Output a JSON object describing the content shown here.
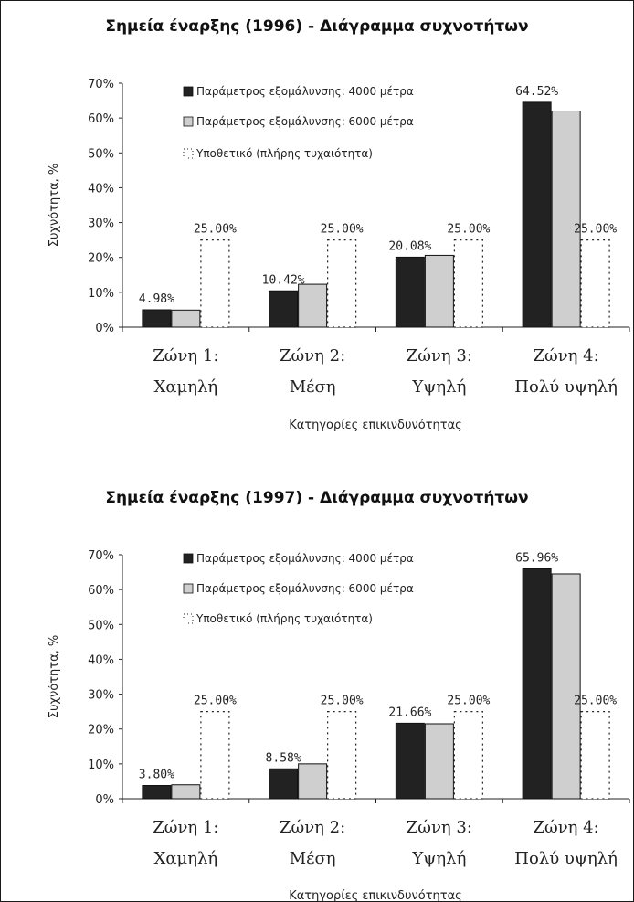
{
  "chart_data": [
    {
      "type": "bar",
      "title": "Σημεία έναρξης (1996) - Διάγραμμα συχνοτήτων",
      "xlabel": "Κατηγορίες επικινδυνότητας",
      "ylabel": "Συχνότητα, %",
      "ylim": [
        0,
        70
      ],
      "yticks": [
        "0%",
        "10%",
        "20%",
        "30%",
        "40%",
        "50%",
        "60%",
        "70%"
      ],
      "categories": [
        [
          "Ζώνη 1:",
          "Χαμηλή"
        ],
        [
          "Ζώνη 2:",
          "Μέση"
        ],
        [
          "Ζώνη 3:",
          "Υψηλή"
        ],
        [
          "Ζώνη 4:",
          "Πολύ υψηλή"
        ]
      ],
      "series": [
        {
          "name": "Παράμετρος εξομάλυνσης: 4000 μέτρα",
          "values": [
            4.98,
            10.42,
            20.08,
            64.52
          ],
          "labels": [
            "4.98%",
            "10.42%",
            "20.08%",
            "64.52%"
          ],
          "color": "#222222",
          "style": "solid"
        },
        {
          "name": "Παράμετρος εξομάλυνσης: 6000 μέτρα",
          "values": [
            4.9,
            12.3,
            20.6,
            62.0
          ],
          "labels": null,
          "color": "#cfcfcf",
          "style": "solid"
        },
        {
          "name": "Υποθετικό (πλήρης τυχαιότητα)",
          "values": [
            25,
            25,
            25,
            25
          ],
          "labels": [
            "25.00%",
            "25.00%",
            "25.00%",
            "25.00%"
          ],
          "color": "#ffffff",
          "style": "dotted"
        }
      ],
      "legend": "top-center",
      "grid": false
    },
    {
      "type": "bar",
      "title": "Σημεία έναρξης (1997) - Διάγραμμα συχνοτήτων",
      "xlabel": "Κατηγορίες επικινδυνότητας",
      "ylabel": "Συχνότητα, %",
      "ylim": [
        0,
        70
      ],
      "yticks": [
        "0%",
        "10%",
        "20%",
        "30%",
        "40%",
        "50%",
        "60%",
        "70%"
      ],
      "categories": [
        [
          "Ζώνη 1:",
          "Χαμηλή"
        ],
        [
          "Ζώνη 2:",
          "Μέση"
        ],
        [
          "Ζώνη 3:",
          "Υψηλή"
        ],
        [
          "Ζώνη 4:",
          "Πολύ υψηλή"
        ]
      ],
      "series": [
        {
          "name": "Παράμετρος εξομάλυνσης: 4000 μέτρα",
          "values": [
            3.8,
            8.58,
            21.66,
            65.96
          ],
          "labels": [
            "3.80%",
            "8.58%",
            "21.66%",
            "65.96%"
          ],
          "color": "#222222",
          "style": "solid"
        },
        {
          "name": "Παράμετρος εξομάλυνσης: 6000 μέτρα",
          "values": [
            4.0,
            10.0,
            21.5,
            64.5
          ],
          "labels": null,
          "color": "#cfcfcf",
          "style": "solid"
        },
        {
          "name": "Υποθετικό (πλήρης τυχαιότητα)",
          "values": [
            25,
            25,
            25,
            25
          ],
          "labels": [
            "25.00%",
            "25.00%",
            "25.00%",
            "25.00%"
          ],
          "color": "#ffffff",
          "style": "dotted"
        }
      ],
      "legend": "top-center",
      "grid": false
    }
  ]
}
